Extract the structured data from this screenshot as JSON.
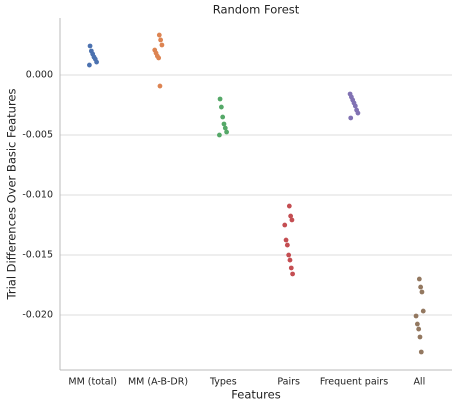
{
  "chart_data": {
    "type": "strip",
    "title": "Random Forest",
    "x_label": "Features",
    "y_label": "Trial Differences Over Basic Features",
    "categories": [
      "MM (total)",
      "MM (A-B-DR)",
      "Types",
      "Pairs",
      "Frequent pairs",
      "All"
    ],
    "colors": [
      "#4c72b0",
      "#dd8452",
      "#55a868",
      "#c44e52",
      "#8172b3",
      "#937860"
    ],
    "values": [
      [
        0.00242,
        0.002,
        0.00175,
        0.0015,
        0.00133,
        0.00108,
        0.00083
      ],
      [
        0.00333,
        0.00292,
        0.0025,
        0.00208,
        0.00183,
        0.00158,
        0.00142,
        -0.00092
      ],
      [
        -0.002,
        -0.00267,
        -0.0035,
        -0.00408,
        -0.00442,
        -0.00475,
        -0.005
      ],
      [
        -0.01092,
        -0.01175,
        -0.01208,
        -0.0125,
        -0.01375,
        -0.01417,
        -0.015,
        -0.01542,
        -0.01608,
        -0.01658
      ],
      [
        -0.00158,
        -0.00183,
        -0.00208,
        -0.00233,
        -0.00258,
        -0.00292,
        -0.00317,
        -0.00358
      ],
      [
        -0.017,
        -0.01767,
        -0.01808,
        -0.01967,
        -0.02008,
        -0.02075,
        -0.02117,
        -0.02183,
        -0.02308
      ]
    ],
    "ylim": [
      -0.02458,
      0.00475
    ],
    "yticks": [
      {
        "value": 0,
        "label": "0.000"
      },
      {
        "value": -0.005,
        "label": "-0.005"
      },
      {
        "value": -0.01,
        "label": "-0.010"
      },
      {
        "value": -0.015,
        "label": "-0.015"
      },
      {
        "value": -0.02,
        "label": "-0.020"
      }
    ],
    "grid": true
  }
}
